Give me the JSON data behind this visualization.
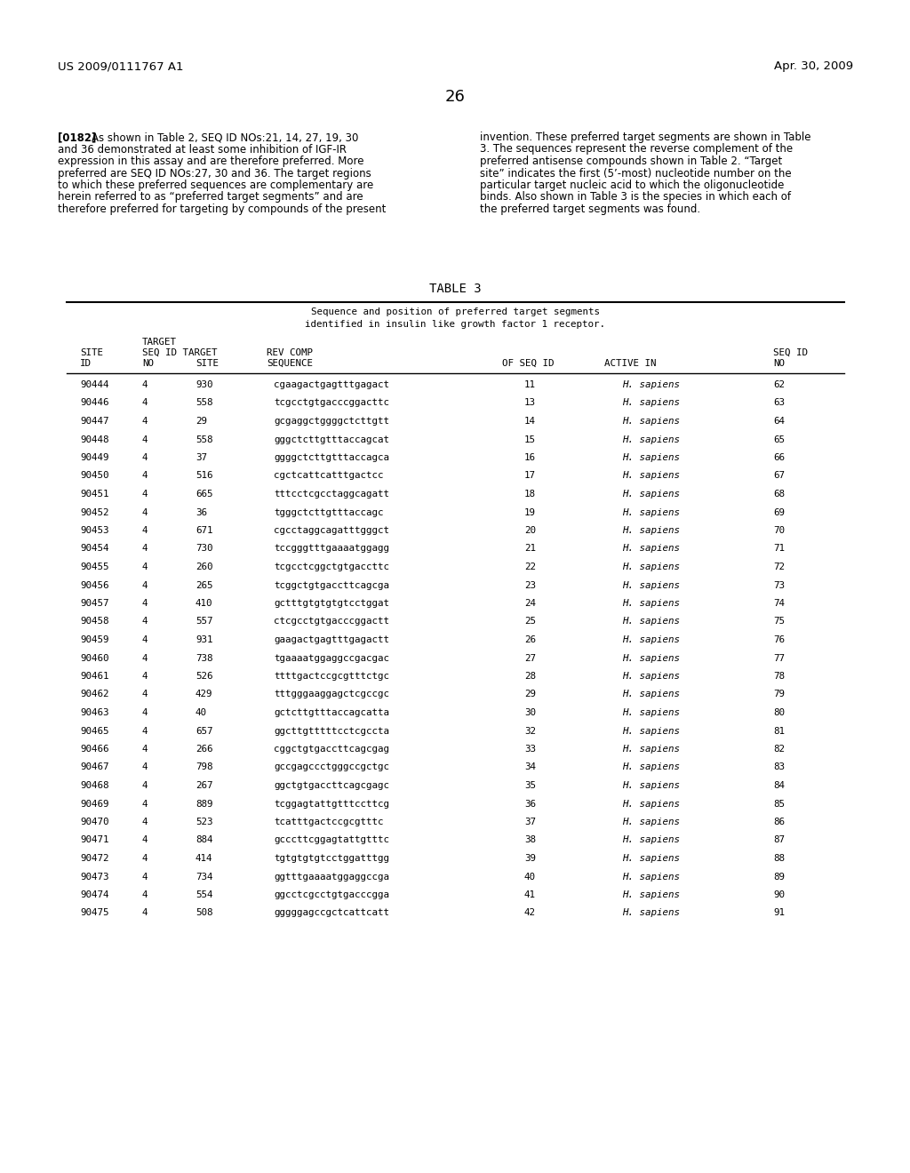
{
  "bg_color": "#ffffff",
  "header_left": "US 2009/0111767 A1",
  "header_right": "Apr. 30, 2009",
  "page_number": "26",
  "para_label": "[0182]",
  "para_left": "As shown in Table 2, SEQ ID NOs:21, 14, 27, 19, 30\nand 36 demonstrated at least some inhibition of IGF-IR\nexpression in this assay and are therefore preferred. More\npreferred are SEQ ID NOs:27, 30 and 36. The target regions\nto which these preferred sequences are complementary are\nherein referred to as “preferred target segments” and are\ntherefore preferred for targeting by compounds of the present",
  "para_right": "invention. These preferred target segments are shown in Table\n3. The sequences represent the reverse complement of the\npreferred antisense compounds shown in Table 2. “Target\nsite” indicates the first (5’-most) nucleotide number on the\nparticular target nucleic acid to which the oligonucleotide\nbinds. Also shown in Table 3 is the species in which each of\nthe preferred target segments was found.",
  "table_title": "TABLE 3",
  "table_subtitle1": "Sequence and position of preferred target segments",
  "table_subtitle2": "identified in insulin like growth factor 1 receptor.",
  "col_headers": [
    "SITE\nID",
    "TARGET\nSEQ ID\nNO",
    "TARGET\nSITE",
    "SEQUENCE",
    "REV COMP\nOF SEQ ID",
    "ACTIVE IN",
    "SEQ ID\nNO"
  ],
  "col_headers_line1": [
    "SITE",
    "TARGET",
    "TARGET",
    "",
    "REV COMP",
    "",
    "SEQ ID"
  ],
  "col_headers_line2": [
    "ID",
    "SEQ ID",
    "SITE",
    "SEQUENCE",
    "OF SEQ ID",
    "ACTIVE IN",
    "NO"
  ],
  "col_headers_line0": [
    "",
    "NO",
    "",
    "",
    "",
    "",
    ""
  ],
  "table_data": [
    [
      "90444",
      "4",
      "930",
      "cgaagactgagtttgagact",
      "11",
      "H. sapiens",
      "62"
    ],
    [
      "90446",
      "4",
      "558",
      "tcgcctgtgacccggacttc",
      "13",
      "H. sapiens",
      "63"
    ],
    [
      "90447",
      "4",
      "29",
      "gcgaggctggggctcttgtt",
      "14",
      "H. sapiens",
      "64"
    ],
    [
      "90448",
      "4",
      "558",
      "gggctcttgtttaccagcat",
      "15",
      "H. sapiens",
      "65"
    ],
    [
      "90449",
      "4",
      "37",
      "ggggctcttgtttaccagca",
      "16",
      "H. sapiens",
      "66"
    ],
    [
      "90450",
      "4",
      "516",
      "cgctcattcatttgactcc",
      "17",
      "H. sapiens",
      "67"
    ],
    [
      "90451",
      "4",
      "665",
      "tttcctcgcctaggcagatt",
      "18",
      "H. sapiens",
      "68"
    ],
    [
      "90452",
      "4",
      "36",
      "tgggctcttgtttaccagc",
      "19",
      "H. sapiens",
      "69"
    ],
    [
      "90453",
      "4",
      "671",
      "cgcctaggcagatttgggct",
      "20",
      "H. sapiens",
      "70"
    ],
    [
      "90454",
      "4",
      "730",
      "tccgggtttgaaaatggagg",
      "21",
      "H. sapiens",
      "71"
    ],
    [
      "90455",
      "4",
      "260",
      "tcgcctcggctgtgaccttc",
      "22",
      "H. sapiens",
      "72"
    ],
    [
      "90456",
      "4",
      "265",
      "tcggctgtgaccttcagcga",
      "23",
      "H. sapiens",
      "73"
    ],
    [
      "90457",
      "4",
      "410",
      "gctttgtgtgtgtcctggat",
      "24",
      "H. sapiens",
      "74"
    ],
    [
      "90458",
      "4",
      "557",
      "ctcgcctgtgacccggactt",
      "25",
      "H. sapiens",
      "75"
    ],
    [
      "90459",
      "4",
      "931",
      "gaagactgagtttgagactt",
      "26",
      "H. sapiens",
      "76"
    ],
    [
      "90460",
      "4",
      "738",
      "tgaaaatggaggccgacgac",
      "27",
      "H. sapiens",
      "77"
    ],
    [
      "90461",
      "4",
      "526",
      "ttttgactccgcgtttctgc",
      "28",
      "H. sapiens",
      "78"
    ],
    [
      "90462",
      "4",
      "429",
      "tttgggaaggagctcgccgc",
      "29",
      "H. sapiens",
      "79"
    ],
    [
      "90463",
      "4",
      "40",
      "gctcttgtttaccagcatta",
      "30",
      "H. sapiens",
      "80"
    ],
    [
      "90465",
      "4",
      "657",
      "ggcttgtttttcctcgccta",
      "32",
      "H. sapiens",
      "81"
    ],
    [
      "90466",
      "4",
      "266",
      "cggctgtgaccttcagcgag",
      "33",
      "H. sapiens",
      "82"
    ],
    [
      "90467",
      "4",
      "798",
      "gccgagccctgggccgctgc",
      "34",
      "H. sapiens",
      "83"
    ],
    [
      "90468",
      "4",
      "267",
      "ggctgtgaccttcagcgagc",
      "35",
      "H. sapiens",
      "84"
    ],
    [
      "90469",
      "4",
      "889",
      "tcggagtattgtttccttcg",
      "36",
      "H. sapiens",
      "85"
    ],
    [
      "90470",
      "4",
      "523",
      "tcatttgactccgcgtttc",
      "37",
      "H. sapiens",
      "86"
    ],
    [
      "90471",
      "4",
      "884",
      "gcccttcggagtattgtttc",
      "38",
      "H. sapiens",
      "87"
    ],
    [
      "90472",
      "4",
      "414",
      "tgtgtgtgtcctggatttgg",
      "39",
      "H. sapiens",
      "88"
    ],
    [
      "90473",
      "4",
      "734",
      "ggtttgaaaatggaggccga",
      "40",
      "H. sapiens",
      "89"
    ],
    [
      "90474",
      "4",
      "554",
      "ggcctcgcctgtgacccgga",
      "41",
      "H. sapiens",
      "90"
    ],
    [
      "90475",
      "4",
      "508",
      "gggggagccgctcattcatt",
      "42",
      "H. sapiens",
      "91"
    ]
  ]
}
